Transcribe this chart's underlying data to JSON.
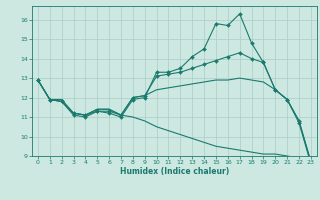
{
  "title": "",
  "xlabel": "Humidex (Indice chaleur)",
  "xlim": [
    -0.5,
    23.5
  ],
  "ylim": [
    9,
    16.7
  ],
  "yticks": [
    9,
    10,
    11,
    12,
    13,
    14,
    15,
    16
  ],
  "xticks": [
    0,
    1,
    2,
    3,
    4,
    5,
    6,
    7,
    8,
    9,
    10,
    11,
    12,
    13,
    14,
    15,
    16,
    17,
    18,
    19,
    20,
    21,
    22,
    23
  ],
  "bg_color": "#cce8e0",
  "line_color": "#1a7a6e",
  "grid_color": "#aacccc",
  "curves": {
    "line1": {
      "x": [
        0,
        1,
        2,
        3,
        4,
        5,
        6,
        7,
        8,
        9,
        10,
        11,
        12,
        13,
        14,
        15,
        16,
        17,
        18,
        19,
        20,
        21,
        22,
        23
      ],
      "y": [
        12.9,
        11.9,
        11.8,
        11.1,
        11.0,
        11.3,
        11.2,
        11.0,
        11.9,
        12.0,
        13.3,
        13.3,
        13.5,
        14.1,
        14.5,
        15.8,
        15.7,
        16.3,
        14.8,
        13.8,
        12.4,
        11.9,
        10.7,
        8.6
      ],
      "marker": true
    },
    "line2": {
      "x": [
        0,
        1,
        2,
        3,
        4,
        5,
        6,
        7,
        8,
        9,
        10,
        11,
        12,
        13,
        14,
        15,
        16,
        17,
        18,
        19,
        20,
        21,
        22,
        23
      ],
      "y": [
        12.9,
        11.9,
        11.8,
        11.2,
        11.1,
        11.3,
        11.3,
        11.1,
        12.0,
        12.1,
        13.1,
        13.2,
        13.3,
        13.5,
        13.7,
        13.9,
        14.1,
        14.3,
        14.0,
        13.8,
        12.4,
        11.9,
        10.8,
        8.7
      ],
      "marker": true
    },
    "line3": {
      "x": [
        0,
        1,
        2,
        3,
        4,
        5,
        6,
        7,
        8,
        9,
        10,
        11,
        12,
        13,
        14,
        15,
        16,
        17,
        18,
        19,
        20,
        21,
        22,
        23
      ],
      "y": [
        12.9,
        11.9,
        11.8,
        11.2,
        11.1,
        11.4,
        11.4,
        11.1,
        12.0,
        12.1,
        12.4,
        12.5,
        12.6,
        12.7,
        12.8,
        12.9,
        12.9,
        13.0,
        12.9,
        12.8,
        12.4,
        11.9,
        10.8,
        8.7
      ],
      "marker": false
    },
    "line4": {
      "x": [
        0,
        1,
        2,
        3,
        4,
        5,
        6,
        7,
        8,
        9,
        10,
        11,
        12,
        13,
        14,
        15,
        16,
        17,
        18,
        19,
        20,
        21,
        22,
        23
      ],
      "y": [
        12.9,
        11.9,
        11.9,
        11.2,
        11.1,
        11.4,
        11.4,
        11.1,
        11.0,
        10.8,
        10.5,
        10.3,
        10.1,
        9.9,
        9.7,
        9.5,
        9.4,
        9.3,
        9.2,
        9.1,
        9.1,
        9.0,
        8.9,
        8.6
      ],
      "marker": false
    }
  }
}
